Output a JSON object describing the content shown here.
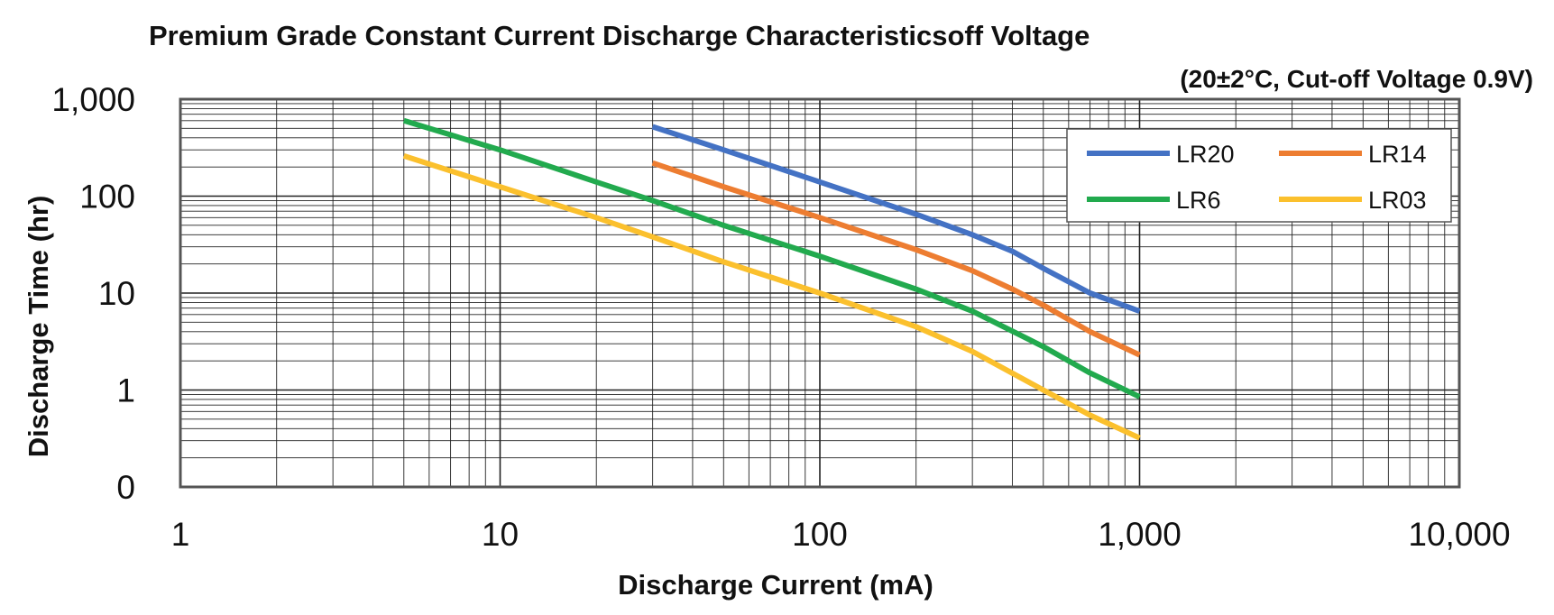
{
  "chart_data": {
    "type": "line",
    "title": "Premium Grade Constant Current Discharge Characteristicsoff Voltage",
    "subtitle": "(20±2°C, Cut-off Voltage 0.9V)",
    "xlabel": "Discharge Current (mA)",
    "ylabel": "Discharge Time (hr)",
    "x_scale": "log",
    "y_scale": "log",
    "xlim": [
      1,
      10000
    ],
    "ylim": [
      0.1,
      1000
    ],
    "x_tick_values": [
      1,
      10,
      100,
      1000,
      10000
    ],
    "x_tick_labels": [
      "1",
      "10",
      "100",
      "1,000",
      "10,000"
    ],
    "y_tick_values": [
      0.1,
      1,
      10,
      100,
      1000
    ],
    "y_tick_labels": [
      "0",
      "1",
      "10",
      "100",
      "1,000"
    ],
    "grid": true,
    "legend_position": "top-right",
    "series": [
      {
        "name": "LR20",
        "color": "#4472C4",
        "x": [
          30,
          50,
          100,
          200,
          300,
          400,
          500,
          700,
          1000
        ],
        "y": [
          520,
          300,
          140,
          65,
          40,
          27,
          18,
          10,
          6.5
        ]
      },
      {
        "name": "LR14",
        "color": "#ED7D31",
        "x": [
          30,
          50,
          100,
          200,
          300,
          400,
          500,
          700,
          1000
        ],
        "y": [
          220,
          125,
          60,
          28,
          17,
          11,
          7.5,
          4.0,
          2.3
        ]
      },
      {
        "name": "LR6",
        "color": "#22AA4E",
        "x": [
          5,
          10,
          20,
          30,
          50,
          100,
          200,
          300,
          500,
          700,
          1000
        ],
        "y": [
          600,
          300,
          140,
          90,
          50,
          24,
          11,
          6.5,
          2.8,
          1.5,
          0.85
        ]
      },
      {
        "name": "LR03",
        "color": "#FBC02D",
        "x": [
          5,
          10,
          20,
          30,
          50,
          100,
          200,
          300,
          500,
          700,
          1000
        ],
        "y": [
          260,
          125,
          60,
          38,
          21,
          10,
          4.5,
          2.5,
          1.0,
          0.55,
          0.32
        ]
      }
    ]
  }
}
